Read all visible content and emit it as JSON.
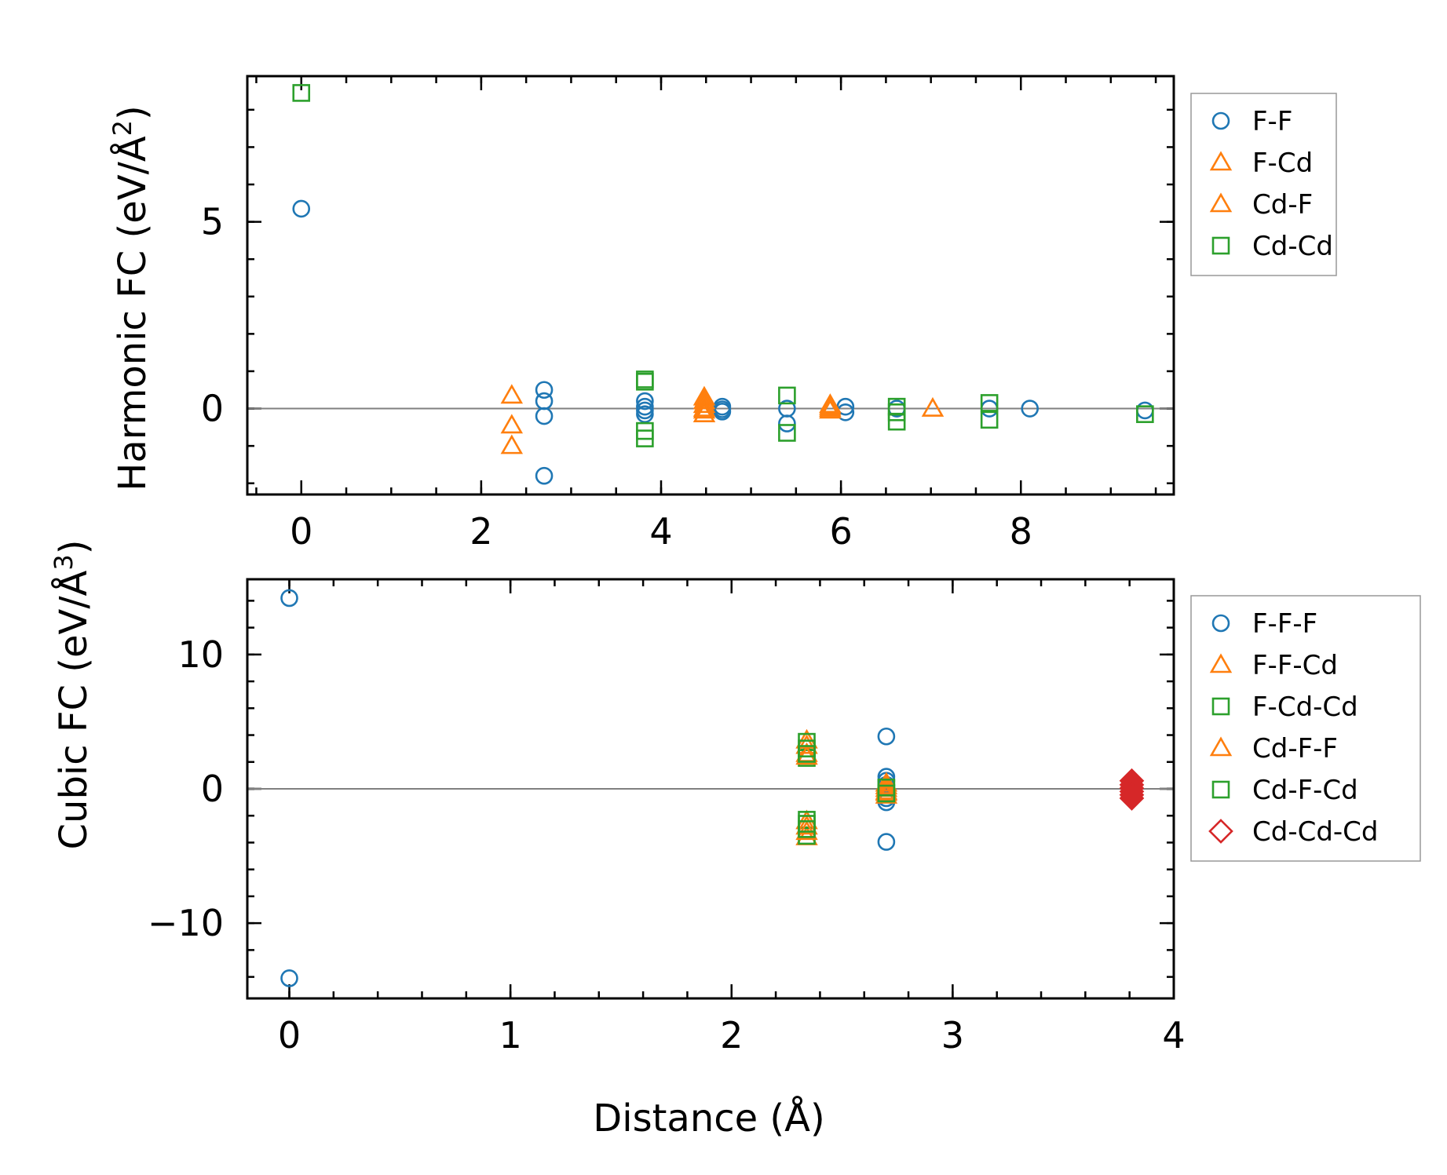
{
  "chart_data": [
    {
      "type": "scatter",
      "ylabel_main": "Harmonic FC (eV/Å",
      "ylabel_sup": "2",
      "ylabel_end": ")",
      "xlim": [
        -0.6,
        9.7
      ],
      "ylim": [
        -2.3,
        8.9
      ],
      "xticks": [
        0,
        2,
        4,
        6,
        8
      ],
      "xtick_labels": [
        "0",
        "2",
        "4",
        "6",
        "8"
      ],
      "yticks": [
        0,
        5
      ],
      "ytick_labels": [
        "0",
        "5"
      ],
      "x_minor_step": 0.5,
      "y_minor_step": 1,
      "zero_line": true,
      "legend_position": "outside-right",
      "series": [
        {
          "name": "F-F",
          "marker": "circle",
          "color": "#1f77b4",
          "points": [
            [
              0,
              5.35
            ],
            [
              2.7,
              0.5
            ],
            [
              2.7,
              0.2
            ],
            [
              2.7,
              -0.2
            ],
            [
              2.7,
              -1.8
            ],
            [
              3.82,
              0.2
            ],
            [
              3.82,
              0.05
            ],
            [
              3.82,
              -0.05
            ],
            [
              3.82,
              -0.15
            ],
            [
              4.68,
              0.05
            ],
            [
              4.68,
              -0.02
            ],
            [
              4.68,
              -0.08
            ],
            [
              5.4,
              0.0
            ],
            [
              5.4,
              -0.4
            ],
            [
              6.05,
              0.05
            ],
            [
              6.05,
              -0.1
            ],
            [
              6.62,
              0.0
            ],
            [
              7.65,
              0.0
            ],
            [
              8.1,
              0.0
            ],
            [
              9.38,
              -0.05
            ]
          ]
        },
        {
          "name": "F-Cd",
          "marker": "triangle",
          "color": "#ff7f0e",
          "points": [
            [
              2.34,
              0.35
            ],
            [
              2.34,
              -0.45
            ],
            [
              2.34,
              -1.0
            ],
            [
              4.48,
              0.3
            ],
            [
              4.48,
              0.1
            ],
            [
              4.48,
              -0.05
            ],
            [
              4.48,
              -0.15
            ],
            [
              5.88,
              0.1
            ],
            [
              5.88,
              0.0
            ],
            [
              7.02,
              0.0
            ]
          ]
        },
        {
          "name": "Cd-F",
          "marker": "triangle",
          "color": "#ff7f0e",
          "points": [
            [
              4.48,
              0.2
            ],
            [
              4.48,
              0.0
            ],
            [
              5.88,
              0.05
            ],
            [
              5.88,
              -0.05
            ]
          ]
        },
        {
          "name": "Cd-Cd",
          "marker": "square",
          "color": "#2ca02c",
          "points": [
            [
              0,
              8.45
            ],
            [
              3.82,
              0.78
            ],
            [
              3.82,
              0.72
            ],
            [
              3.82,
              -0.6
            ],
            [
              3.82,
              -0.8
            ],
            [
              5.4,
              0.35
            ],
            [
              5.4,
              -0.65
            ],
            [
              6.62,
              0.05
            ],
            [
              6.62,
              -0.1
            ],
            [
              6.62,
              -0.35
            ],
            [
              7.65,
              0.15
            ],
            [
              7.65,
              -0.3
            ],
            [
              9.38,
              -0.15
            ]
          ]
        }
      ]
    },
    {
      "type": "scatter",
      "ylabel_main": "Cubic FC (eV/Å",
      "ylabel_sup": "3",
      "ylabel_end": ")",
      "xlabel": "Distance (Å)",
      "xlim": [
        -0.19,
        4.0
      ],
      "ylim": [
        -15.6,
        15.6
      ],
      "xticks": [
        0,
        1,
        2,
        3,
        4
      ],
      "xtick_labels": [
        "0",
        "1",
        "2",
        "3",
        "4"
      ],
      "yticks": [
        -10,
        0,
        10
      ],
      "ytick_labels": [
        "−10",
        "0",
        "10"
      ],
      "x_minor_step": 0.2,
      "y_minor_step": 2,
      "zero_line": true,
      "legend_position": "outside-right",
      "series": [
        {
          "name": "F-F-F",
          "marker": "circle",
          "color": "#1f77b4",
          "points": [
            [
              0,
              14.2
            ],
            [
              0,
              -14.1
            ],
            [
              2.7,
              3.9
            ],
            [
              2.7,
              0.9
            ],
            [
              2.7,
              0.6
            ],
            [
              2.7,
              0.3
            ],
            [
              2.7,
              -0.3
            ],
            [
              2.7,
              -0.7
            ],
            [
              2.7,
              -1.0
            ],
            [
              2.7,
              -3.95
            ]
          ]
        },
        {
          "name": "F-F-Cd",
          "marker": "triangle",
          "color": "#ff7f0e",
          "points": [
            [
              2.34,
              3.6
            ],
            [
              2.34,
              2.6
            ],
            [
              2.34,
              -2.4
            ],
            [
              2.34,
              -3.6
            ],
            [
              2.7,
              0.4
            ],
            [
              2.7,
              0.0
            ],
            [
              2.7,
              -0.3
            ]
          ]
        },
        {
          "name": "F-Cd-Cd",
          "marker": "square",
          "color": "#2ca02c",
          "points": [
            [
              2.34,
              3.5
            ],
            [
              2.34,
              2.3
            ],
            [
              2.34,
              -2.3
            ],
            [
              2.34,
              -3.5
            ]
          ]
        },
        {
          "name": "Cd-F-F",
          "marker": "triangle",
          "color": "#ff7f0e",
          "points": [
            [
              2.34,
              3.2
            ],
            [
              2.34,
              2.4
            ],
            [
              2.34,
              -2.8
            ],
            [
              2.34,
              -3.2
            ],
            [
              2.7,
              0.2
            ],
            [
              2.7,
              -0.2
            ],
            [
              2.7,
              -0.5
            ]
          ]
        },
        {
          "name": "Cd-F-Cd",
          "marker": "square",
          "color": "#2ca02c",
          "points": [
            [
              2.34,
              3.0
            ],
            [
              2.34,
              2.6
            ],
            [
              2.34,
              -2.6
            ],
            [
              2.34,
              -3.0
            ],
            [
              2.7,
              0.1
            ],
            [
              2.7,
              -0.35
            ]
          ]
        },
        {
          "name": "Cd-Cd-Cd",
          "marker": "diamond",
          "color": "#d62728",
          "points": [
            [
              3.81,
              0.6
            ],
            [
              3.81,
              0.3
            ],
            [
              3.81,
              0.05
            ],
            [
              3.81,
              -0.2
            ],
            [
              3.81,
              -0.45
            ],
            [
              3.81,
              -0.7
            ]
          ]
        }
      ]
    }
  ]
}
